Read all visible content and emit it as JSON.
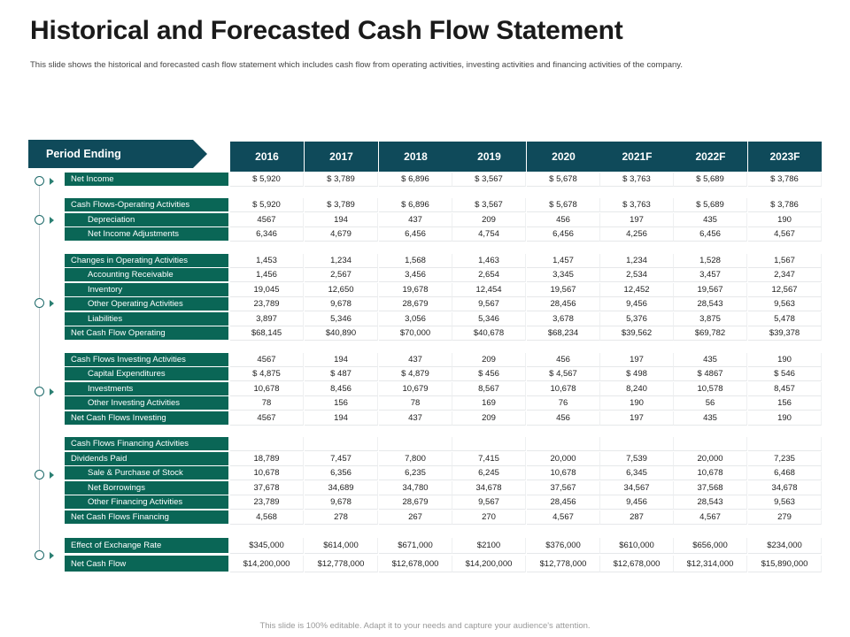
{
  "title": "Historical and Forecasted Cash Flow Statement",
  "subtitle": "This slide shows the historical and forecasted cash flow statement which includes cash flow from operating activities, investing activities and financing activities of the company.",
  "footer": "This slide is 100% editable. Adapt it to your needs and capture your audience's attention.",
  "period_label": "Period Ending",
  "years": [
    "2016",
    "2017",
    "2018",
    "2019",
    "2020",
    "2021F",
    "2022F",
    "2023F"
  ],
  "colors": {
    "header": "#0f4a5a",
    "row_label": "#0a6656",
    "bullet": "#1e6a6a"
  },
  "rows": [
    {
      "label": "Net Income",
      "indent": false,
      "values": [
        "$ 5,920",
        "$ 3,789",
        "$ 6,896",
        "$ 3,567",
        "$ 5,678",
        "$ 3,763",
        "$ 5,689",
        "$ 3,786"
      ]
    },
    {
      "label": "Cash Flows-Operating Activities",
      "indent": false,
      "values": [
        "$ 5,920",
        "$ 3,789",
        "$ 6,896",
        "$ 3,567",
        "$ 5,678",
        "$ 3,763",
        "$ 5,689",
        "$ 3,786"
      ]
    },
    {
      "label": "Depreciation",
      "indent": true,
      "values": [
        "4567",
        "194",
        "437",
        "209",
        "456",
        "197",
        "435",
        "190"
      ]
    },
    {
      "label": "Net Income Adjustments",
      "indent": true,
      "values": [
        "6,346",
        "4,679",
        "6,456",
        "4,754",
        "6,456",
        "4,256",
        "6,456",
        "4,567"
      ]
    },
    {
      "label": "Changes in Operating Activities",
      "indent": false,
      "values": [
        "1,453",
        "1,234",
        "1,568",
        "1,463",
        "1,457",
        "1,234",
        "1,528",
        "1,567"
      ]
    },
    {
      "label": "Accounting Receivable",
      "indent": true,
      "values": [
        "1,456",
        "2,567",
        "3,456",
        "2,654",
        "3,345",
        "2,534",
        "3,457",
        "2,347"
      ]
    },
    {
      "label": "Inventory",
      "indent": true,
      "values": [
        "19,045",
        "12,650",
        "19,678",
        "12,454",
        "19,567",
        "12,452",
        "19,567",
        "12,567"
      ]
    },
    {
      "label": "Other Operating Activities",
      "indent": true,
      "values": [
        "23,789",
        "9,678",
        "28,679",
        "9,567",
        "28,456",
        "9,456",
        "28,543",
        "9,563"
      ]
    },
    {
      "label": "Liabilities",
      "indent": true,
      "values": [
        "3,897",
        "5,346",
        "3,056",
        "5,346",
        "3,678",
        "5,376",
        "3,875",
        "5,478"
      ]
    },
    {
      "label": "Net Cash Flow Operating",
      "indent": false,
      "values": [
        "$68,145",
        "$40,890",
        "$70,000",
        "$40,678",
        "$68,234",
        "$39,562",
        "$69,782",
        "$39,378"
      ]
    },
    {
      "label": "Cash Flows Investing Activities",
      "indent": false,
      "values": [
        "4567",
        "194",
        "437",
        "209",
        "456",
        "197",
        "435",
        "190"
      ]
    },
    {
      "label": "Capital Expenditures",
      "indent": true,
      "values": [
        "$ 4,875",
        "$ 487",
        "$ 4,879",
        "$ 456",
        "$ 4,567",
        "$ 498",
        "$ 4867",
        "$ 546"
      ]
    },
    {
      "label": "Investments",
      "indent": true,
      "values": [
        "10,678",
        "8,456",
        "10,679",
        "8,567",
        "10,678",
        "8,240",
        "10,578",
        "8,457"
      ]
    },
    {
      "label": "Other Investing Activities",
      "indent": true,
      "values": [
        "78",
        "156",
        "78",
        "169",
        "76",
        "190",
        "56",
        "156"
      ]
    },
    {
      "label": "Net Cash Flows Investing",
      "indent": false,
      "values": [
        "4567",
        "194",
        "437",
        "209",
        "456",
        "197",
        "435",
        "190"
      ]
    },
    {
      "label": "Cash Flows Financing Activities",
      "indent": false,
      "values": [
        "",
        "",
        "",
        "",
        "",
        "",
        "",
        ""
      ]
    },
    {
      "label": "Dividends Paid",
      "indent": false,
      "values": [
        "18,789",
        "7,457",
        "7,800",
        "7,415",
        "20,000",
        "7,539",
        "20,000",
        "7,235"
      ]
    },
    {
      "label": "Sale & Purchase of Stock",
      "indent": true,
      "values": [
        "10,678",
        "6,356",
        "6,235",
        "6,245",
        "10,678",
        "6,345",
        "10,678",
        "6,468"
      ]
    },
    {
      "label": "Net Borrowings",
      "indent": true,
      "values": [
        "37,678",
        "34,689",
        "34,780",
        "34,678",
        "37,567",
        "34,567",
        "37,568",
        "34,678"
      ]
    },
    {
      "label": "Other Financing Activities",
      "indent": true,
      "values": [
        "23,789",
        "9,678",
        "28,679",
        "9,567",
        "28,456",
        "9,456",
        "28,543",
        "9,563"
      ]
    },
    {
      "label": "Net Cash Flows Financing",
      "indent": false,
      "values": [
        "4,568",
        "278",
        "267",
        "270",
        "4,567",
        "287",
        "4,567",
        "279"
      ]
    },
    {
      "label": "Effect of Exchange Rate",
      "indent": false,
      "values": [
        "$345,000",
        "$614,000",
        "$671,000",
        "$2100",
        "$376,000",
        "$610,000",
        "$656,000",
        "$234,000"
      ]
    },
    {
      "label": "Net Cash Flow",
      "indent": false,
      "values": [
        "$14,200,000",
        "$12,778,000",
        "$12,678,000",
        "$14,200,000",
        "$12,778,000",
        "$12,678,000",
        "$12,314,000",
        "$15,890,000"
      ]
    }
  ]
}
